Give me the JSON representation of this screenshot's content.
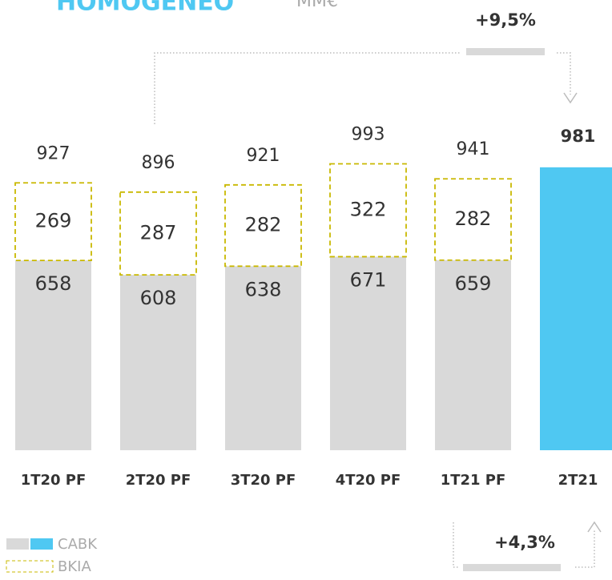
{
  "chart_data": {
    "type": "stacked_bar",
    "title": "HOMOGENEO",
    "subtitle": "MM€",
    "categories": [
      "1T20 PF",
      "2T20 PF",
      "3T20 PF",
      "4T20 PF",
      "1T21 PF",
      "2T21"
    ],
    "series": [
      {
        "name": "CABK",
        "color": "#d9d9d9",
        "highlight_color": "#4fc8f2",
        "values": [
          658,
          608,
          638,
          671,
          659,
          981
        ]
      },
      {
        "name": "BKIA",
        "color": "#c9b800",
        "values": [
          269,
          287,
          282,
          322,
          282,
          null
        ]
      }
    ],
    "totals": [
      927,
      896,
      921,
      993,
      941,
      981
    ],
    "highlight_index": 5,
    "ylim": [
      0,
      1000
    ],
    "annotations": [
      "+9,5%",
      "+4,3%"
    ]
  }
}
